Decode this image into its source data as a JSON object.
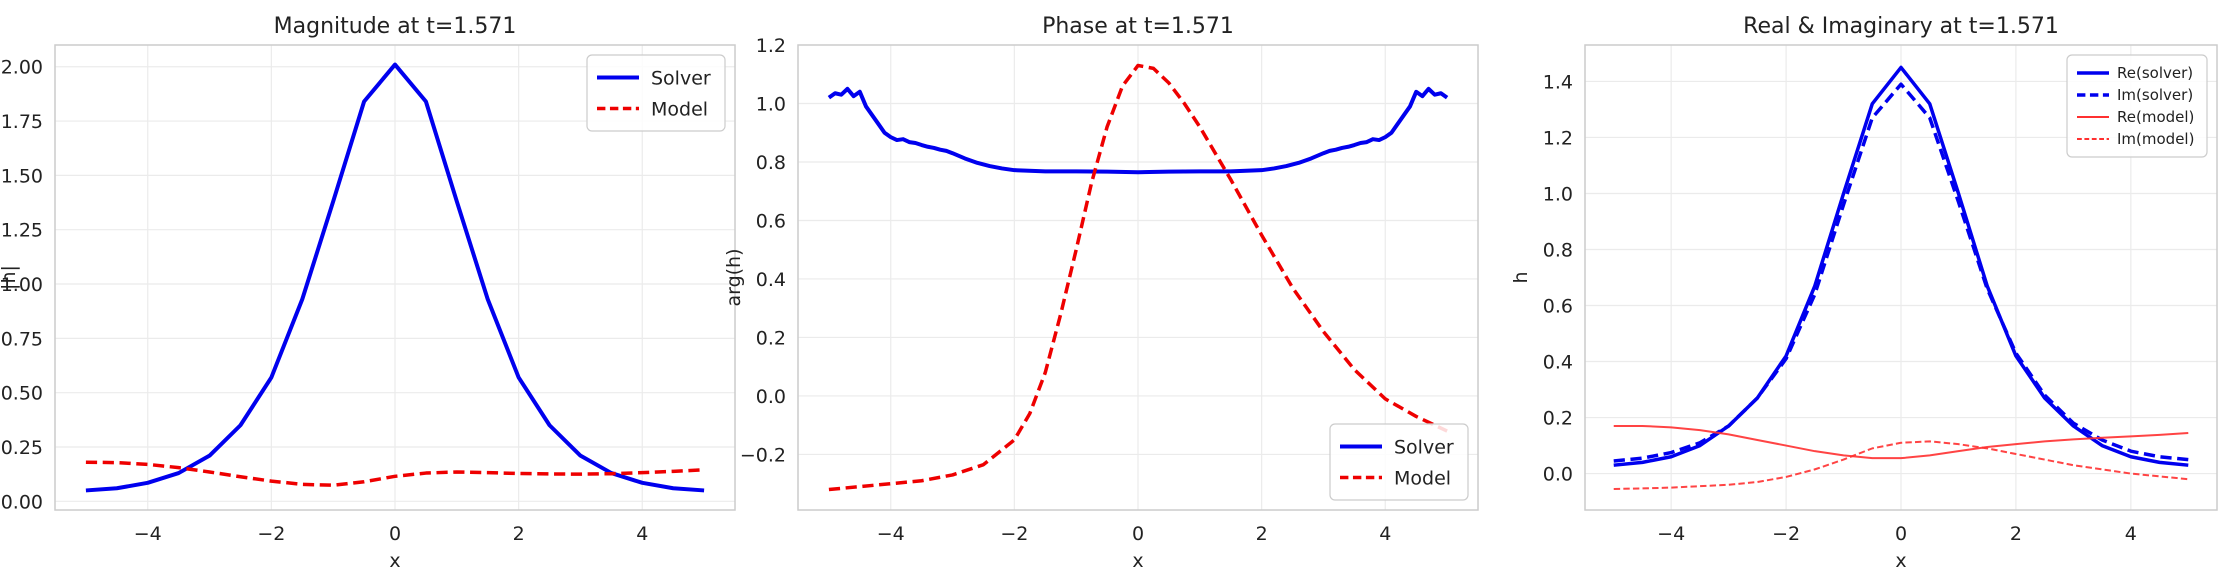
{
  "chart_data": [
    {
      "type": "line",
      "title": "Magnitude at t=1.571",
      "xlabel": "x",
      "ylabel": "|h|",
      "xlim": [
        -5.5,
        5.5
      ],
      "ylim": [
        -0.04,
        2.1
      ],
      "grid": true,
      "legend_position": "top-right",
      "x_ticks": [
        {
          "v": -4,
          "label": "−4"
        },
        {
          "v": -2,
          "label": "−2"
        },
        {
          "v": 0,
          "label": "0"
        },
        {
          "v": 2,
          "label": "2"
        },
        {
          "v": 4,
          "label": "4"
        }
      ],
      "y_ticks": [
        {
          "v": 0,
          "label": "0.00"
        },
        {
          "v": 0.25,
          "label": "0.25"
        },
        {
          "v": 0.5,
          "label": "0.50"
        },
        {
          "v": 0.75,
          "label": "0.75"
        },
        {
          "v": 1.0,
          "label": "1.00"
        },
        {
          "v": 1.25,
          "label": "1.25"
        },
        {
          "v": 1.5,
          "label": "1.50"
        },
        {
          "v": 1.75,
          "label": "1.75"
        },
        {
          "v": 2.0,
          "label": "2.00"
        }
      ],
      "series": [
        {
          "name": "Solver",
          "color": "#0000ee",
          "style": "solid",
          "width": 4,
          "points": [
            [
              -5,
              0.05
            ],
            [
              -4.5,
              0.06
            ],
            [
              -4,
              0.085
            ],
            [
              -3.5,
              0.13
            ],
            [
              -3,
              0.21
            ],
            [
              -2.5,
              0.35
            ],
            [
              -2,
              0.57
            ],
            [
              -1.5,
              0.93
            ],
            [
              -1,
              1.38
            ],
            [
              -0.5,
              1.84
            ],
            [
              0,
              2.01
            ],
            [
              0.5,
              1.84
            ],
            [
              1,
              1.38
            ],
            [
              1.5,
              0.93
            ],
            [
              2,
              0.57
            ],
            [
              2.5,
              0.35
            ],
            [
              3,
              0.21
            ],
            [
              3.5,
              0.13
            ],
            [
              4,
              0.085
            ],
            [
              4.5,
              0.06
            ],
            [
              5,
              0.05
            ]
          ]
        },
        {
          "name": "Model",
          "color": "#ee0000",
          "style": "dashed",
          "width": 3.5,
          "points": [
            [
              -5,
              0.18
            ],
            [
              -4.5,
              0.178
            ],
            [
              -4,
              0.17
            ],
            [
              -3.5,
              0.155
            ],
            [
              -3,
              0.135
            ],
            [
              -2.5,
              0.113
            ],
            [
              -2,
              0.093
            ],
            [
              -1.5,
              0.078
            ],
            [
              -1,
              0.074
            ],
            [
              -0.5,
              0.09
            ],
            [
              0,
              0.115
            ],
            [
              0.5,
              0.13
            ],
            [
              1,
              0.135
            ],
            [
              1.5,
              0.132
            ],
            [
              2,
              0.128
            ],
            [
              2.5,
              0.126
            ],
            [
              3,
              0.125
            ],
            [
              3.5,
              0.127
            ],
            [
              4,
              0.132
            ],
            [
              4.5,
              0.138
            ],
            [
              5,
              0.145
            ]
          ]
        }
      ]
    },
    {
      "type": "line",
      "title": "Phase at t=1.571",
      "xlabel": "x",
      "ylabel": "arg(h)",
      "xlim": [
        -5.5,
        5.5
      ],
      "ylim": [
        -0.39,
        1.2
      ],
      "grid": true,
      "legend_position": "bottom-right",
      "x_ticks": [
        {
          "v": -4,
          "label": "−4"
        },
        {
          "v": -2,
          "label": "−2"
        },
        {
          "v": 0,
          "label": "0"
        },
        {
          "v": 2,
          "label": "2"
        },
        {
          "v": 4,
          "label": "4"
        }
      ],
      "y_ticks": [
        {
          "v": -0.2,
          "label": "−0.2"
        },
        {
          "v": 0,
          "label": "0.0"
        },
        {
          "v": 0.2,
          "label": "0.2"
        },
        {
          "v": 0.4,
          "label": "0.4"
        },
        {
          "v": 0.6,
          "label": "0.6"
        },
        {
          "v": 0.8,
          "label": "0.8"
        },
        {
          "v": 1.0,
          "label": "1.0"
        },
        {
          "v": 1.2,
          "label": "1.2"
        }
      ],
      "series": [
        {
          "name": "Solver",
          "color": "#0000ee",
          "style": "solid",
          "width": 4,
          "points": [
            [
              -5,
              1.02
            ],
            [
              -4.9,
              1.035
            ],
            [
              -4.8,
              1.03
            ],
            [
              -4.7,
              1.05
            ],
            [
              -4.6,
              1.025
            ],
            [
              -4.5,
              1.04
            ],
            [
              -4.4,
              0.99
            ],
            [
              -4.3,
              0.96
            ],
            [
              -4.2,
              0.93
            ],
            [
              -4.1,
              0.9
            ],
            [
              -4,
              0.885
            ],
            [
              -3.9,
              0.875
            ],
            [
              -3.8,
              0.878
            ],
            [
              -3.7,
              0.868
            ],
            [
              -3.6,
              0.865
            ],
            [
              -3.5,
              0.858
            ],
            [
              -3.4,
              0.852
            ],
            [
              -3.3,
              0.848
            ],
            [
              -3.2,
              0.842
            ],
            [
              -3.1,
              0.838
            ],
            [
              -3,
              0.83
            ],
            [
              -2.8,
              0.812
            ],
            [
              -2.6,
              0.797
            ],
            [
              -2.4,
              0.786
            ],
            [
              -2.2,
              0.778
            ],
            [
              -2,
              0.772
            ],
            [
              -1.5,
              0.768
            ],
            [
              -1,
              0.768
            ],
            [
              -0.5,
              0.767
            ],
            [
              0,
              0.765
            ],
            [
              0.5,
              0.767
            ],
            [
              1,
              0.768
            ],
            [
              1.5,
              0.768
            ],
            [
              2,
              0.772
            ],
            [
              2.2,
              0.778
            ],
            [
              2.4,
              0.786
            ],
            [
              2.6,
              0.797
            ],
            [
              2.8,
              0.812
            ],
            [
              3,
              0.83
            ],
            [
              3.1,
              0.838
            ],
            [
              3.2,
              0.842
            ],
            [
              3.3,
              0.848
            ],
            [
              3.4,
              0.852
            ],
            [
              3.5,
              0.858
            ],
            [
              3.6,
              0.865
            ],
            [
              3.7,
              0.868
            ],
            [
              3.8,
              0.878
            ],
            [
              3.9,
              0.875
            ],
            [
              4,
              0.885
            ],
            [
              4.1,
              0.9
            ],
            [
              4.2,
              0.93
            ],
            [
              4.3,
              0.96
            ],
            [
              4.4,
              0.99
            ],
            [
              4.5,
              1.04
            ],
            [
              4.6,
              1.025
            ],
            [
              4.7,
              1.05
            ],
            [
              4.8,
              1.03
            ],
            [
              4.9,
              1.035
            ],
            [
              5,
              1.02
            ]
          ]
        },
        {
          "name": "Model",
          "color": "#ee0000",
          "style": "dashed",
          "width": 3.5,
          "points": [
            [
              -5,
              -0.32
            ],
            [
              -4.5,
              -0.31
            ],
            [
              -4,
              -0.3
            ],
            [
              -3.5,
              -0.29
            ],
            [
              -3,
              -0.27
            ],
            [
              -2.5,
              -0.235
            ],
            [
              -2,
              -0.15
            ],
            [
              -1.75,
              -0.06
            ],
            [
              -1.5,
              0.08
            ],
            [
              -1.25,
              0.28
            ],
            [
              -1,
              0.5
            ],
            [
              -0.75,
              0.73
            ],
            [
              -0.5,
              0.92
            ],
            [
              -0.25,
              1.06
            ],
            [
              0,
              1.13
            ],
            [
              0.25,
              1.12
            ],
            [
              0.5,
              1.07
            ],
            [
              0.75,
              1.0
            ],
            [
              1,
              0.92
            ],
            [
              1.5,
              0.74
            ],
            [
              2,
              0.55
            ],
            [
              2.5,
              0.37
            ],
            [
              3,
              0.22
            ],
            [
              3.5,
              0.09
            ],
            [
              4,
              -0.01
            ],
            [
              4.5,
              -0.07
            ],
            [
              5,
              -0.12
            ]
          ]
        }
      ]
    },
    {
      "type": "line",
      "title": "Real & Imaginary at t=1.571",
      "xlabel": "x",
      "ylabel": "h",
      "xlim": [
        -5.5,
        5.5
      ],
      "ylim": [
        -0.13,
        1.53
      ],
      "grid": true,
      "legend_position": "top-right",
      "x_ticks": [
        {
          "v": -4,
          "label": "−4"
        },
        {
          "v": -2,
          "label": "−2"
        },
        {
          "v": 0,
          "label": "0"
        },
        {
          "v": 2,
          "label": "2"
        },
        {
          "v": 4,
          "label": "4"
        }
      ],
      "y_ticks": [
        {
          "v": 0,
          "label": "0.0"
        },
        {
          "v": 0.2,
          "label": "0.2"
        },
        {
          "v": 0.4,
          "label": "0.4"
        },
        {
          "v": 0.6,
          "label": "0.6"
        },
        {
          "v": 0.8,
          "label": "0.8"
        },
        {
          "v": 1.0,
          "label": "1.0"
        },
        {
          "v": 1.2,
          "label": "1.2"
        },
        {
          "v": 1.4,
          "label": "1.4"
        }
      ],
      "series": [
        {
          "name": "Re(solver)",
          "color": "#0000ee",
          "style": "solid",
          "width": 3.5,
          "points": [
            [
              -5,
              0.03
            ],
            [
              -4.5,
              0.04
            ],
            [
              -4,
              0.06
            ],
            [
              -3.5,
              0.1
            ],
            [
              -3,
              0.17
            ],
            [
              -2.5,
              0.27
            ],
            [
              -2,
              0.42
            ],
            [
              -1.5,
              0.67
            ],
            [
              -1,
              1.0
            ],
            [
              -0.5,
              1.32
            ],
            [
              0,
              1.45
            ],
            [
              0.5,
              1.32
            ],
            [
              1,
              1.0
            ],
            [
              1.5,
              0.67
            ],
            [
              2,
              0.42
            ],
            [
              2.5,
              0.27
            ],
            [
              3,
              0.17
            ],
            [
              3.5,
              0.1
            ],
            [
              4,
              0.06
            ],
            [
              4.5,
              0.04
            ],
            [
              5,
              0.03
            ]
          ]
        },
        {
          "name": "Im(solver)",
          "color": "#0000ee",
          "style": "dashed",
          "width": 3.5,
          "points": [
            [
              -5,
              0.045
            ],
            [
              -4.5,
              0.055
            ],
            [
              -4,
              0.075
            ],
            [
              -3.5,
              0.11
            ],
            [
              -3,
              0.17
            ],
            [
              -2.5,
              0.27
            ],
            [
              -2,
              0.41
            ],
            [
              -1.5,
              0.64
            ],
            [
              -1,
              0.96
            ],
            [
              -0.5,
              1.27
            ],
            [
              0,
              1.39
            ],
            [
              0.5,
              1.27
            ],
            [
              1,
              0.97
            ],
            [
              1.5,
              0.66
            ],
            [
              2,
              0.43
            ],
            [
              2.5,
              0.28
            ],
            [
              3,
              0.18
            ],
            [
              3.5,
              0.12
            ],
            [
              4,
              0.08
            ],
            [
              4.5,
              0.06
            ],
            [
              5,
              0.05
            ]
          ]
        },
        {
          "name": "Re(model)",
          "color": "#ff3030",
          "style": "solid",
          "width": 2,
          "points": [
            [
              -5,
              0.17
            ],
            [
              -4.5,
              0.17
            ],
            [
              -4,
              0.165
            ],
            [
              -3.5,
              0.155
            ],
            [
              -3,
              0.14
            ],
            [
              -2.5,
              0.12
            ],
            [
              -2,
              0.1
            ],
            [
              -1.5,
              0.08
            ],
            [
              -1,
              0.065
            ],
            [
              -0.5,
              0.055
            ],
            [
              0,
              0.055
            ],
            [
              0.5,
              0.065
            ],
            [
              1,
              0.08
            ],
            [
              1.5,
              0.095
            ],
            [
              2,
              0.105
            ],
            [
              2.5,
              0.115
            ],
            [
              3,
              0.122
            ],
            [
              3.5,
              0.128
            ],
            [
              4,
              0.133
            ],
            [
              4.5,
              0.138
            ],
            [
              5,
              0.145
            ]
          ]
        },
        {
          "name": "Im(model)",
          "color": "#ff3030",
          "style": "dashed",
          "width": 2,
          "points": [
            [
              -5,
              -0.055
            ],
            [
              -4.5,
              -0.053
            ],
            [
              -4,
              -0.05
            ],
            [
              -3.5,
              -0.045
            ],
            [
              -3,
              -0.04
            ],
            [
              -2.5,
              -0.03
            ],
            [
              -2,
              -0.012
            ],
            [
              -1.5,
              0.015
            ],
            [
              -1,
              0.05
            ],
            [
              -0.5,
              0.09
            ],
            [
              0,
              0.11
            ],
            [
              0.5,
              0.115
            ],
            [
              1,
              0.105
            ],
            [
              1.5,
              0.09
            ],
            [
              2,
              0.07
            ],
            [
              2.5,
              0.05
            ],
            [
              3,
              0.03
            ],
            [
              3.5,
              0.015
            ],
            [
              4,
              0.0
            ],
            [
              4.5,
              -0.01
            ],
            [
              5,
              -0.02
            ]
          ]
        }
      ]
    }
  ]
}
